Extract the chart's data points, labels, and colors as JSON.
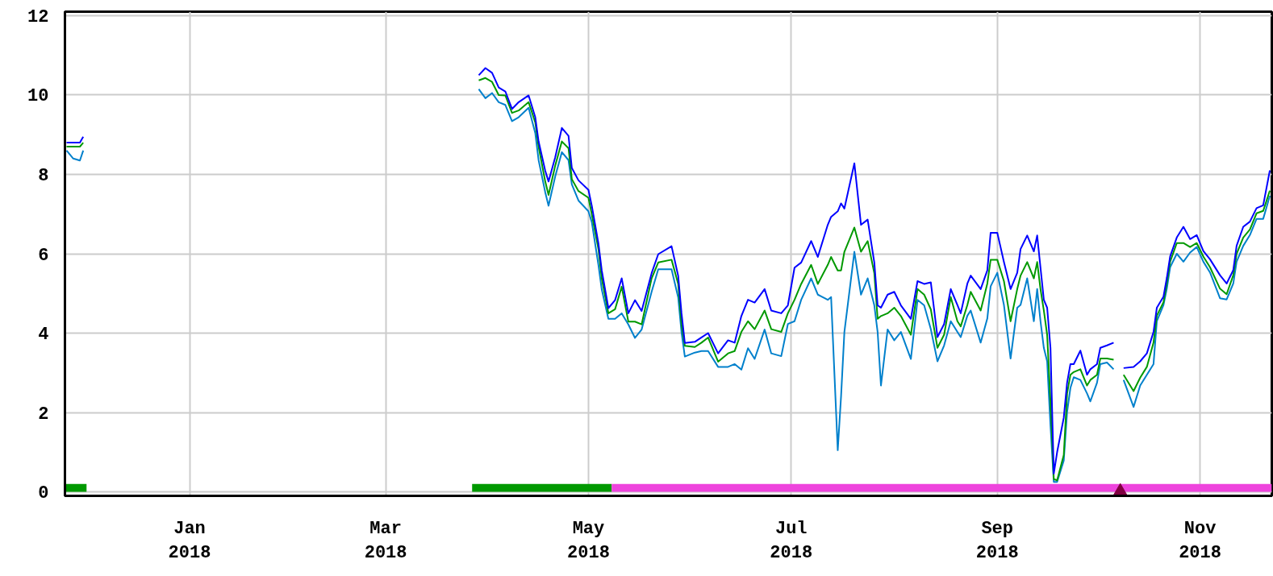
{
  "chart_data": {
    "type": "line",
    "x": [
      "2017-11-25",
      "2017-11-27",
      "2017-11-29",
      "2017-11-30",
      "2018-02-01",
      "2018-03-29",
      "2018-03-31",
      "2018-04-02",
      "2018-04-04",
      "2018-04-06",
      "2018-04-08",
      "2018-04-10",
      "2018-04-13",
      "2018-04-15",
      "2018-04-16",
      "2018-04-18",
      "2018-04-19",
      "2018-04-21",
      "2018-04-23",
      "2018-04-25",
      "2018-04-26",
      "2018-04-28",
      "2018-05-01",
      "2018-05-02",
      "2018-05-04",
      "2018-05-05",
      "2018-05-07",
      "2018-05-09",
      "2018-05-11",
      "2018-05-13",
      "2018-05-15",
      "2018-05-17",
      "2018-05-20",
      "2018-05-22",
      "2018-05-26",
      "2018-05-28",
      "2018-05-29",
      "2018-05-30",
      "2018-06-02",
      "2018-06-04",
      "2018-06-06",
      "2018-06-09",
      "2018-06-12",
      "2018-06-14",
      "2018-06-16",
      "2018-06-18",
      "2018-06-20",
      "2018-06-23",
      "2018-06-25",
      "2018-06-28",
      "2018-06-30",
      "2018-07-02",
      "2018-07-04",
      "2018-07-07",
      "2018-07-09",
      "2018-07-12",
      "2018-07-13",
      "2018-07-15",
      "2018-07-16",
      "2018-07-17",
      "2018-07-20",
      "2018-07-22",
      "2018-07-24",
      "2018-07-26",
      "2018-07-27",
      "2018-07-28",
      "2018-07-30",
      "2018-08-01",
      "2018-08-03",
      "2018-08-06",
      "2018-08-08",
      "2018-08-10",
      "2018-08-12",
      "2018-08-14",
      "2018-08-16",
      "2018-08-18",
      "2018-08-20",
      "2018-08-21",
      "2018-08-23",
      "2018-08-24",
      "2018-08-27",
      "2018-08-29",
      "2018-08-30",
      "2018-09-01",
      "2018-09-03",
      "2018-09-05",
      "2018-09-07",
      "2018-09-08",
      "2018-09-10",
      "2018-09-12",
      "2018-09-13",
      "2018-09-14",
      "2018-09-15",
      "2018-09-16",
      "2018-09-17",
      "2018-09-18",
      "2018-09-19",
      "2018-09-21",
      "2018-09-22",
      "2018-09-23",
      "2018-09-24",
      "2018-09-26",
      "2018-09-28",
      "2018-09-29",
      "2018-10-01",
      "2018-10-02",
      "2018-10-04",
      "2018-10-06",
      "2018-10-07",
      "2018-10-09",
      "2018-10-12",
      "2018-10-14",
      "2018-10-16",
      "2018-10-18",
      "2018-10-19",
      "2018-10-21",
      "2018-10-22",
      "2018-10-23",
      "2018-10-25",
      "2018-10-27",
      "2018-10-29",
      "2018-10-31",
      "2018-11-02",
      "2018-11-04",
      "2018-11-07",
      "2018-11-09",
      "2018-11-11",
      "2018-11-12",
      "2018-11-14",
      "2018-11-16",
      "2018-11-18",
      "2018-11-20",
      "2018-11-22"
    ],
    "series": [
      {
        "color": "#0080cc",
        "values": [
          8.6,
          8.4,
          8.35,
          8.6,
          null,
          10.15,
          9.92,
          10.05,
          9.82,
          9.75,
          9.34,
          9.44,
          9.68,
          9.04,
          8.36,
          7.55,
          7.21,
          7.95,
          8.56,
          8.36,
          7.75,
          7.34,
          7.07,
          6.8,
          5.72,
          5.1,
          4.36,
          4.36,
          4.5,
          4.22,
          3.88,
          4.09,
          5.04,
          5.61,
          5.61,
          4.9,
          4.02,
          3.41,
          3.51,
          3.55,
          3.55,
          3.15,
          3.15,
          3.22,
          3.08,
          3.62,
          3.35,
          4.09,
          3.49,
          3.42,
          4.23,
          4.3,
          4.84,
          5.38,
          4.97,
          4.84,
          4.91,
          1.05,
          2.41,
          4.03,
          6.05,
          4.97,
          5.38,
          4.7,
          4.03,
          2.68,
          4.09,
          3.82,
          4.03,
          3.35,
          4.84,
          4.7,
          4.1,
          3.29,
          3.69,
          4.3,
          4.03,
          3.9,
          4.44,
          4.57,
          3.76,
          4.37,
          5.18,
          5.52,
          4.71,
          3.36,
          4.64,
          4.71,
          5.38,
          4.3,
          5.11,
          4.3,
          3.63,
          3.29,
          1.67,
          0.25,
          0.25,
          0.79,
          2.01,
          2.62,
          2.89,
          2.82,
          2.48,
          2.28,
          2.75,
          3.22,
          3.26,
          3.09,
          null,
          2.82,
          2.14,
          2.68,
          2.95,
          3.22,
          4.3,
          4.71,
          5.12,
          5.66,
          6.0,
          5.8,
          6.03,
          6.17,
          5.8,
          5.53,
          4.88,
          4.85,
          5.25,
          5.8,
          6.2,
          6.47,
          6.88,
          6.88,
          7.46
        ]
      },
      {
        "color": "#009900",
        "values": [
          8.7,
          8.7,
          8.7,
          8.8,
          null,
          10.37,
          10.43,
          10.33,
          10.0,
          9.99,
          9.55,
          9.61,
          9.82,
          9.31,
          8.7,
          7.82,
          7.48,
          8.22,
          8.83,
          8.66,
          7.88,
          7.58,
          7.41,
          7.0,
          6.12,
          5.38,
          4.5,
          4.6,
          5.17,
          4.29,
          4.29,
          4.22,
          5.38,
          5.78,
          5.85,
          5.24,
          4.22,
          3.68,
          3.65,
          3.76,
          3.89,
          3.28,
          3.49,
          3.55,
          4.03,
          4.3,
          4.1,
          4.57,
          4.1,
          4.03,
          4.5,
          4.84,
          5.24,
          5.72,
          5.24,
          5.72,
          5.92,
          5.58,
          5.58,
          6.05,
          6.66,
          6.05,
          6.32,
          5.51,
          4.36,
          4.43,
          4.5,
          4.64,
          4.43,
          3.96,
          5.11,
          4.97,
          4.6,
          3.63,
          3.96,
          4.91,
          4.3,
          4.17,
          4.71,
          5.04,
          4.57,
          5.25,
          5.85,
          5.85,
          5.31,
          4.3,
          5.11,
          5.45,
          5.79,
          5.38,
          5.79,
          5.11,
          4.57,
          3.96,
          2.28,
          0.32,
          0.29,
          0.93,
          2.48,
          2.95,
          3.02,
          3.09,
          2.68,
          2.82,
          2.95,
          3.36,
          3.36,
          3.33,
          null,
          2.95,
          2.54,
          2.88,
          3.15,
          3.76,
          4.44,
          4.78,
          5.25,
          5.8,
          6.27,
          6.27,
          6.17,
          6.27,
          5.93,
          5.66,
          5.12,
          4.98,
          5.46,
          6.0,
          6.41,
          6.61,
          7.02,
          7.08,
          7.59
        ]
      },
      {
        "color": "#0000ff",
        "values": [
          8.8,
          8.8,
          8.8,
          8.95,
          null,
          10.5,
          10.68,
          10.56,
          10.19,
          10.09,
          9.65,
          9.82,
          9.99,
          9.44,
          8.83,
          8.09,
          7.82,
          8.43,
          9.17,
          8.97,
          8.16,
          7.85,
          7.61,
          7.21,
          6.26,
          5.58,
          4.63,
          4.83,
          5.38,
          4.5,
          4.83,
          4.56,
          5.51,
          5.99,
          6.19,
          5.44,
          4.5,
          3.75,
          3.78,
          3.89,
          4.0,
          3.49,
          3.82,
          3.76,
          4.43,
          4.84,
          4.77,
          5.11,
          4.57,
          4.5,
          4.7,
          5.65,
          5.78,
          6.32,
          5.92,
          6.73,
          6.93,
          7.07,
          7.27,
          7.14,
          8.28,
          6.73,
          6.86,
          5.78,
          4.7,
          4.64,
          4.97,
          5.04,
          4.7,
          4.36,
          5.31,
          5.24,
          5.28,
          3.9,
          4.23,
          5.11,
          4.71,
          4.5,
          5.25,
          5.45,
          5.11,
          5.58,
          6.53,
          6.53,
          5.79,
          5.11,
          5.52,
          6.12,
          6.46,
          6.06,
          6.46,
          5.65,
          4.84,
          4.64,
          3.63,
          0.46,
          1.0,
          1.87,
          2.75,
          3.22,
          3.22,
          3.56,
          2.95,
          3.09,
          3.22,
          3.63,
          3.69,
          3.76,
          null,
          3.12,
          3.15,
          3.29,
          3.49,
          4.03,
          4.64,
          4.92,
          5.39,
          5.93,
          6.41,
          6.68,
          6.37,
          6.47,
          6.07,
          5.86,
          5.46,
          5.25,
          5.59,
          6.2,
          6.68,
          6.81,
          7.15,
          7.22,
          8.1
        ]
      },
      {
        "type": "area",
        "color": "#009900",
        "x": [
          "2017-11-24T12:00",
          "2017-12-01"
        ],
        "values": [
          0.2,
          0.2
        ]
      },
      {
        "type": "area",
        "color": "#009900",
        "x": [
          "2018-03-27",
          "2018-05-08"
        ],
        "values": [
          0.2,
          0.2
        ]
      },
      {
        "type": "area",
        "color": "#ee44dd",
        "x": [
          "2018-05-08",
          "2018-11-22T14:00"
        ],
        "values": [
          0.2,
          0.2
        ]
      },
      {
        "type": "scatter",
        "marker": "triangle",
        "color": "#800040",
        "x": [
          "2018-10-08"
        ],
        "values": [
          0
        ]
      }
    ],
    "xlim": [
      "2017-11-24T12:00",
      "2018-11-22T14:00"
    ],
    "xticks": [
      {
        "value": "2018-01-01",
        "label": "Jan\n2018"
      },
      {
        "value": "2018-03-01",
        "label": "Mar\n2018"
      },
      {
        "value": "2018-05-01",
        "label": "May\n2018"
      },
      {
        "value": "2018-07-01",
        "label": "Jul\n2018"
      },
      {
        "value": "2018-09-01",
        "label": "Sep\n2018"
      },
      {
        "value": "2018-11-01",
        "label": "Nov\n2018"
      }
    ],
    "ylim": [
      -0.1,
      12.1
    ],
    "yticks": [
      0,
      2,
      4,
      6,
      8,
      10,
      12
    ],
    "grid": true
  }
}
